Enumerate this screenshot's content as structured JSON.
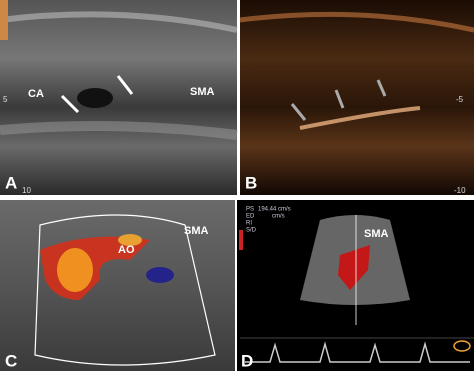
{
  "panels": [
    {
      "label": "A",
      "annotations": [
        "CA",
        "SMA"
      ],
      "scale": [
        "5",
        "10"
      ]
    },
    {
      "label": "B",
      "scale": [
        "-5",
        "-10"
      ]
    },
    {
      "label": "C",
      "annotations": [
        "SMA",
        "AO"
      ]
    },
    {
      "label": "D",
      "annotations": [
        "SMA"
      ],
      "measurements": [
        "PS",
        "194.44 cm/s",
        "ED",
        "cm/s",
        "RI",
        "S/D"
      ]
    }
  ]
}
